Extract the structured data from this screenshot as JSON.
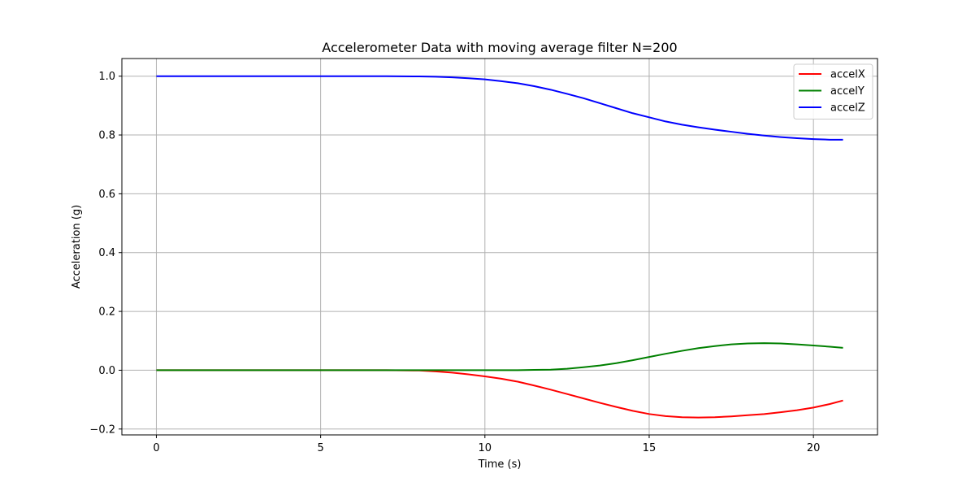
{
  "chart_data": {
    "type": "line",
    "title": "Accelerometer Data with moving average filter N=200",
    "xlabel": "Time (s)",
    "ylabel": "Acceleration (g)",
    "xlim": [
      -1.05,
      21.95
    ],
    "ylim": [
      -0.22,
      1.06
    ],
    "x_ticks": [
      0,
      5,
      10,
      15,
      20
    ],
    "x_tick_labels": [
      "0",
      "5",
      "10",
      "15",
      "20"
    ],
    "y_ticks": [
      -0.2,
      0.0,
      0.2,
      0.4,
      0.6,
      0.8,
      1.0
    ],
    "y_tick_labels": [
      "−0.2",
      "0.0",
      "0.2",
      "0.4",
      "0.6",
      "0.8",
      "1.0"
    ],
    "grid": true,
    "legend_position": "top-right",
    "x": [
      0,
      1,
      2,
      3,
      4,
      5,
      6,
      7,
      8,
      8.5,
      9,
      9.5,
      10,
      10.5,
      11,
      11.5,
      12,
      12.5,
      13,
      13.5,
      14,
      14.5,
      15,
      15.5,
      16,
      16.5,
      17,
      17.5,
      18,
      18.5,
      19,
      19.5,
      20,
      20.5,
      20.9
    ],
    "series": [
      {
        "name": "accelX",
        "color": "#ff0000",
        "values": [
          0,
          0,
          0,
          0,
          0,
          0,
          0,
          0,
          -0.001,
          -0.004,
          -0.008,
          -0.014,
          -0.021,
          -0.029,
          -0.039,
          -0.052,
          -0.066,
          -0.081,
          -0.096,
          -0.111,
          -0.125,
          -0.138,
          -0.149,
          -0.156,
          -0.16,
          -0.161,
          -0.16,
          -0.157,
          -0.153,
          -0.149,
          -0.143,
          -0.136,
          -0.127,
          -0.115,
          -0.103
        ]
      },
      {
        "name": "accelY",
        "color": "#008000",
        "values": [
          0,
          0,
          0,
          0,
          0,
          0,
          0,
          0,
          0,
          0,
          0,
          0,
          0,
          0,
          0,
          0.001,
          0.002,
          0.005,
          0.01,
          0.016,
          0.024,
          0.034,
          0.045,
          0.056,
          0.066,
          0.075,
          0.082,
          0.088,
          0.091,
          0.092,
          0.091,
          0.088,
          0.084,
          0.08,
          0.076
        ]
      },
      {
        "name": "accelZ",
        "color": "#0000ff",
        "values": [
          1.0,
          1.0,
          1.0,
          1.0,
          1.0,
          1.0,
          1.0,
          1.0,
          0.999,
          0.998,
          0.996,
          0.993,
          0.989,
          0.983,
          0.976,
          0.966,
          0.954,
          0.94,
          0.925,
          0.908,
          0.891,
          0.874,
          0.86,
          0.846,
          0.835,
          0.826,
          0.818,
          0.811,
          0.804,
          0.798,
          0.793,
          0.789,
          0.786,
          0.784,
          0.784
        ]
      }
    ]
  }
}
